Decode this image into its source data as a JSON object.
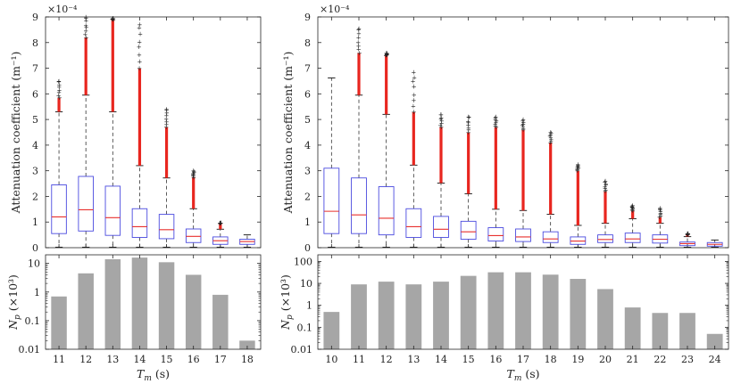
{
  "chart_data": [
    {
      "type": "box",
      "ylabel": "Attenuation coefficient (m⁻¹)",
      "yscale_label": "×10⁻⁴",
      "ylim": [
        0,
        9
      ],
      "yticks": [
        "0",
        "1",
        "2",
        "3",
        "4",
        "5",
        "6",
        "7",
        "8",
        "9"
      ],
      "categories": [
        "11",
        "12",
        "13",
        "14",
        "15",
        "16",
        "17",
        "18"
      ],
      "boxes": [
        {
          "q1": 0.55,
          "median": 1.2,
          "q3": 2.45,
          "wlo": 0.02,
          "whi": 5.3,
          "out_max": 6.5,
          "out_dense_to": 5.85
        },
        {
          "q1": 0.65,
          "median": 1.48,
          "q3": 2.78,
          "wlo": 0.02,
          "whi": 5.95,
          "out_max": 9.0,
          "out_dense_to": 8.2
        },
        {
          "q1": 0.48,
          "median": 1.17,
          "q3": 2.4,
          "wlo": 0.02,
          "whi": 5.3,
          "out_max": 8.95,
          "out_dense_to": 8.9
        },
        {
          "q1": 0.4,
          "median": 0.82,
          "q3": 1.52,
          "wlo": 0.02,
          "whi": 3.2,
          "out_max": 8.7,
          "out_dense_to": 7.0
        },
        {
          "q1": 0.35,
          "median": 0.7,
          "q3": 1.3,
          "wlo": 0.02,
          "whi": 2.72,
          "out_max": 5.4,
          "out_dense_to": 4.7
        },
        {
          "q1": 0.2,
          "median": 0.44,
          "q3": 0.73,
          "wlo": 0.02,
          "whi": 1.52,
          "out_max": 3.0,
          "out_dense_to": 2.75
        },
        {
          "q1": 0.13,
          "median": 0.27,
          "q3": 0.42,
          "wlo": 0.02,
          "whi": 0.72,
          "out_max": 0.98,
          "out_dense_to": 0.95
        },
        {
          "q1": 0.13,
          "median": 0.24,
          "q3": 0.33,
          "wlo": 0.02,
          "whi": 0.5,
          "out_max": null,
          "out_dense_to": null
        }
      ]
    },
    {
      "type": "box",
      "ylabel": "Attenuation coefficient (m⁻¹)",
      "yscale_label": "×10⁻⁴",
      "ylim": [
        0,
        9
      ],
      "yticks": [
        "0",
        "1",
        "2",
        "3",
        "4",
        "5",
        "6",
        "7",
        "8",
        "9"
      ],
      "categories": [
        "10",
        "11",
        "12",
        "13",
        "14",
        "15",
        "16",
        "17",
        "18",
        "19",
        "20",
        "21",
        "22",
        "23",
        "24"
      ],
      "boxes": [
        {
          "q1": 0.55,
          "median": 1.42,
          "q3": 3.1,
          "wlo": 0.02,
          "whi": 6.62,
          "out_max": null,
          "out_dense_to": null
        },
        {
          "q1": 0.55,
          "median": 1.28,
          "q3": 2.72,
          "wlo": 0.02,
          "whi": 5.95,
          "out_max": 8.55,
          "out_dense_to": 7.6
        },
        {
          "q1": 0.5,
          "median": 1.15,
          "q3": 2.38,
          "wlo": 0.02,
          "whi": 5.2,
          "out_max": 7.6,
          "out_dense_to": 7.5
        },
        {
          "q1": 0.4,
          "median": 0.82,
          "q3": 1.52,
          "wlo": 0.02,
          "whi": 3.22,
          "out_max": 6.85,
          "out_dense_to": 5.3
        },
        {
          "q1": 0.4,
          "median": 0.72,
          "q3": 1.22,
          "wlo": 0.02,
          "whi": 2.52,
          "out_max": 5.2,
          "out_dense_to": 4.7
        },
        {
          "q1": 0.33,
          "median": 0.62,
          "q3": 1.03,
          "wlo": 0.02,
          "whi": 2.1,
          "out_max": 5.1,
          "out_dense_to": 4.5
        },
        {
          "q1": 0.26,
          "median": 0.47,
          "q3": 0.78,
          "wlo": 0.02,
          "whi": 1.5,
          "out_max": 5.1,
          "out_dense_to": 4.7
        },
        {
          "q1": 0.24,
          "median": 0.42,
          "q3": 0.73,
          "wlo": 0.02,
          "whi": 1.45,
          "out_max": 5.0,
          "out_dense_to": 4.6
        },
        {
          "q1": 0.2,
          "median": 0.34,
          "q3": 0.62,
          "wlo": 0.02,
          "whi": 1.3,
          "out_max": 4.5,
          "out_dense_to": 4.1
        },
        {
          "q1": 0.13,
          "median": 0.26,
          "q3": 0.42,
          "wlo": 0.02,
          "whi": 0.87,
          "out_max": 3.25,
          "out_dense_to": 3.0
        },
        {
          "q1": 0.2,
          "median": 0.32,
          "q3": 0.5,
          "wlo": 0.02,
          "whi": 0.95,
          "out_max": 2.6,
          "out_dense_to": 2.2
        },
        {
          "q1": 0.2,
          "median": 0.34,
          "q3": 0.57,
          "wlo": 0.02,
          "whi": 1.13,
          "out_max": 1.65,
          "out_dense_to": 1.45
        },
        {
          "q1": 0.18,
          "median": 0.33,
          "q3": 0.5,
          "wlo": 0.02,
          "whi": 0.95,
          "out_max": 1.55,
          "out_dense_to": 1.2
        },
        {
          "q1": 0.08,
          "median": 0.16,
          "q3": 0.22,
          "wlo": 0.02,
          "whi": 0.43,
          "out_max": 0.55,
          "out_dense_to": 0.52
        },
        {
          "q1": 0.06,
          "median": 0.13,
          "q3": 0.2,
          "wlo": 0.02,
          "whi": 0.3,
          "out_max": null,
          "out_dense_to": null
        }
      ]
    },
    {
      "type": "bar",
      "yscale": "log",
      "ylim": [
        0.01,
        20
      ],
      "yticks": [
        "0.01",
        "0.1",
        "1",
        "10"
      ],
      "ytick_values": [
        0.01,
        0.1,
        1,
        10
      ],
      "ylabel_var": "N",
      "ylabel_sub": "p",
      "ylabel_unit": "(×10³)",
      "xlabel_var": "T",
      "xlabel_sub": "m",
      "xlabel_unit": "(s)",
      "categories": [
        "11",
        "12",
        "13",
        "14",
        "15",
        "16",
        "17",
        "18"
      ],
      "values": [
        0.7,
        4.5,
        14,
        16,
        11,
        4,
        0.8,
        0.02
      ]
    },
    {
      "type": "bar",
      "yscale": "log",
      "ylim": [
        0.01,
        200
      ],
      "yticks": [
        "0.01",
        "0.1",
        "1",
        "10",
        "100"
      ],
      "ytick_values": [
        0.01,
        0.1,
        1,
        10,
        100
      ],
      "ylabel_var": "N",
      "ylabel_sub": "p",
      "ylabel_unit": "(×10³)",
      "xlabel_var": "T",
      "xlabel_sub": "m",
      "xlabel_unit": "(s)",
      "categories": [
        "10",
        "11",
        "12",
        "13",
        "14",
        "15",
        "16",
        "17",
        "18",
        "19",
        "20",
        "21",
        "22",
        "23",
        "24"
      ],
      "values": [
        0.5,
        9,
        12,
        9,
        12,
        22,
        32,
        32,
        25,
        16,
        5.5,
        0.8,
        0.45,
        0.45,
        0.05
      ]
    }
  ]
}
